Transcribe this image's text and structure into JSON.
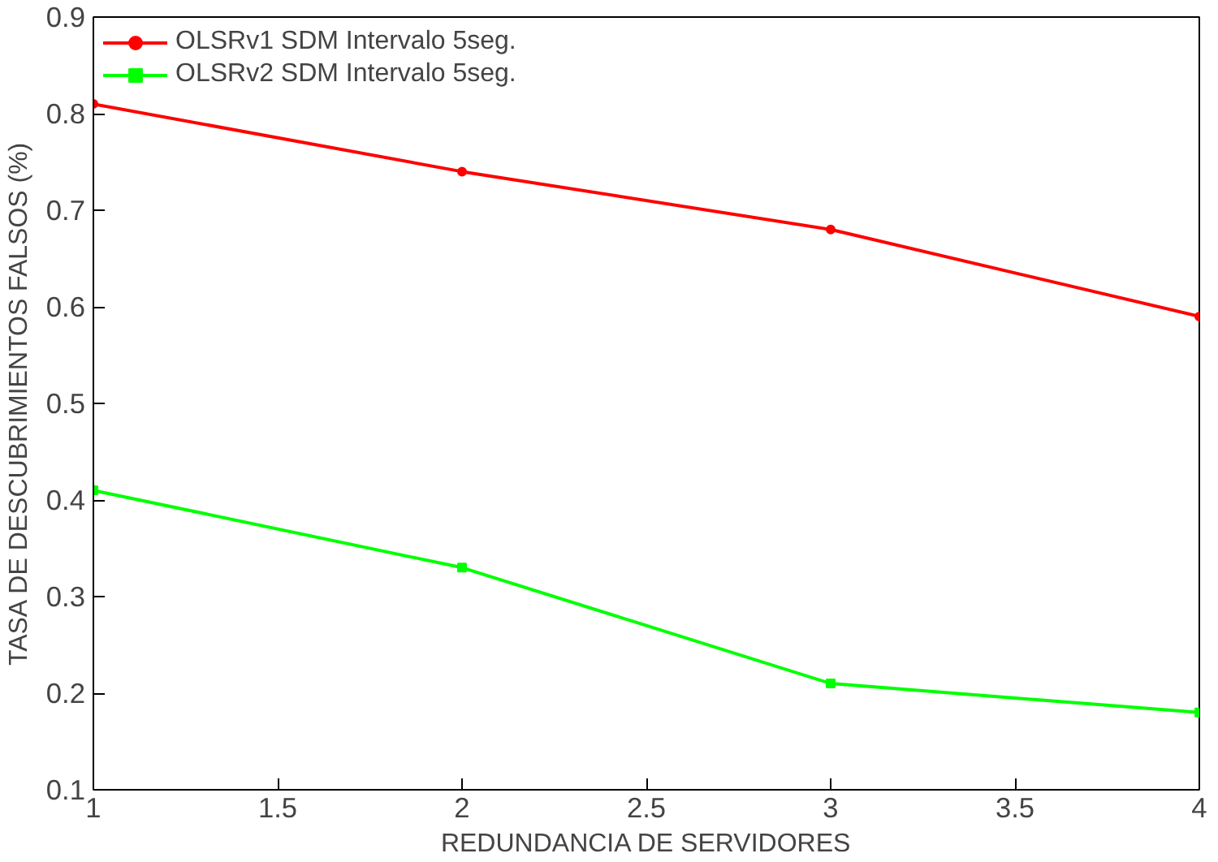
{
  "chart_data": {
    "type": "line",
    "xlabel": "REDUNDANCIA DE SERVIDORES",
    "ylabel": "TASA DE DESCUBRIMIENTOS FALSOS (%)",
    "x": [
      1,
      2,
      3,
      4
    ],
    "series": [
      {
        "name": "OLSRv1 SDM Intervalo 5seg.",
        "color": "#ff0000",
        "marker": "circle",
        "values": [
          0.81,
          0.74,
          0.68,
          0.59
        ]
      },
      {
        "name": "OLSRv2 SDM Intervalo 5seg.",
        "color": "#00ff00",
        "marker": "square",
        "values": [
          0.41,
          0.33,
          0.21,
          0.18
        ]
      }
    ],
    "xlim": [
      1,
      4
    ],
    "xticks": [
      1,
      1.5,
      2,
      2.5,
      3,
      3.5,
      4
    ],
    "ylim": [
      0.1,
      0.9
    ],
    "yticks": [
      0.1,
      0.2,
      0.3,
      0.4,
      0.5,
      0.6,
      0.7,
      0.8,
      0.9
    ],
    "grid": false,
    "legend": "top left",
    "line_style": "solid"
  }
}
